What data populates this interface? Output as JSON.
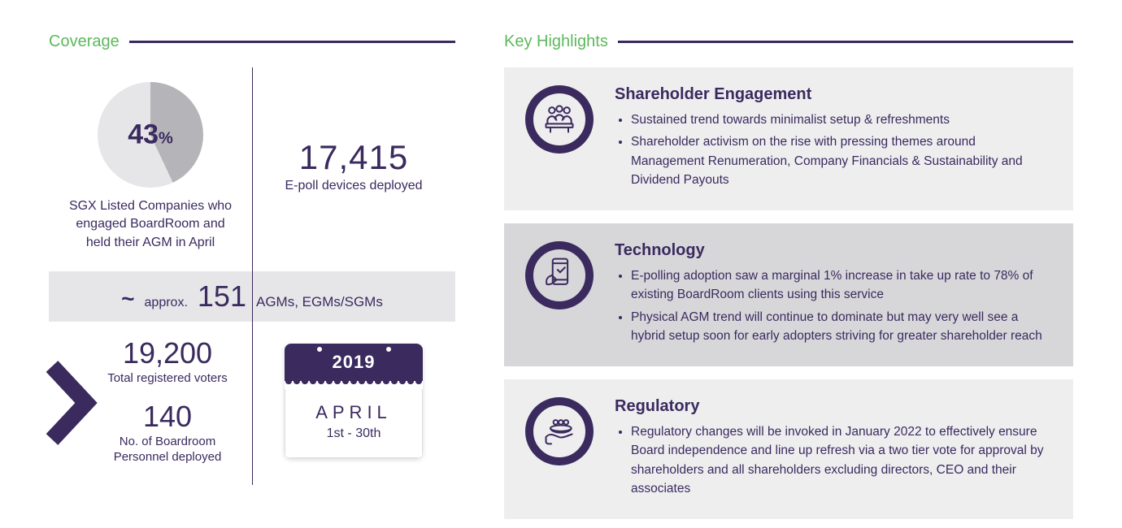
{
  "colors": {
    "accent_green": "#5cb85c",
    "brand_purple": "#3a2a5e",
    "pie_filled": "#b5b5b9",
    "pie_empty": "#e6e6e9",
    "card_bg_light": "#eeeeef",
    "card_bg_dark": "#d7d7da",
    "white": "#ffffff"
  },
  "coverage": {
    "section_title": "Coverage",
    "pie": {
      "percent": 43,
      "label_value": "43",
      "label_suffix": "%",
      "filled_color": "#b5b5b9",
      "empty_color": "#e6e6e9",
      "size": 130
    },
    "pie_desc": "SGX Listed Companies who engaged BoardRoom and held their AGM in April",
    "epoll": {
      "value": "17,415",
      "label": "E-poll devices deployed"
    },
    "meetings": {
      "tilde": "~",
      "approx": "approx.",
      "value": "151",
      "label": "AGMs, EGMs/SGMs",
      "bg": "#e6e6e9"
    },
    "voters": {
      "value": "19,200",
      "label": "Total registered voters"
    },
    "personnel": {
      "value": "140",
      "label": "No. of Boardroom Personnel deployed"
    },
    "calendar": {
      "year": "2019",
      "month": "APRIL",
      "dates": "1st - 30th",
      "header_bg": "#3a2a5e"
    }
  },
  "highlights": {
    "section_title": "Key Highlights",
    "cards": [
      {
        "icon": "meeting-icon",
        "title": "Shareholder Engagement",
        "bg": "#eeeeef",
        "bullets": [
          "Sustained trend towards minimalist setup & refreshments",
          "Shareholder activism on the rise with pressing themes around Management Renumeration, Company Financials & Sustainability and Dividend Payouts"
        ]
      },
      {
        "icon": "phone-poll-icon",
        "title": "Technology",
        "bg": "#d7d7da",
        "bullets": [
          "E-polling adoption saw a marginal 1% increase in take up rate to 78% of existing BoardRoom clients using this service",
          "Physical AGM trend will continue to dominate but may very well see a hybrid setup soon for early adopters striving for greater shareholder reach"
        ]
      },
      {
        "icon": "governance-icon",
        "title": "Regulatory",
        "bg": "#eeeeef",
        "bullets": [
          "Regulatory changes will be invoked in January 2022 to effectively ensure Board independence and line up refresh via a two tier vote for approval by shareholders and all shareholders excluding directors, CEO and their associates"
        ]
      }
    ]
  }
}
